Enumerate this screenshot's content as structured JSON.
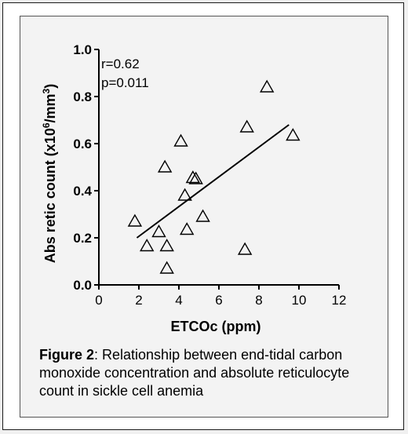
{
  "chart_data": {
    "type": "scatter",
    "xlabel": "ETCOc (ppm)",
    "ylabel": "Abs retic count (x10",
    "ylabel_sup": "6",
    "ylabel_unit": "/mm",
    "ylabel_sup2": "3",
    "ylabel_close": ")",
    "xlim": [
      0,
      12
    ],
    "ylim": [
      0,
      1.0
    ],
    "x_ticks": [
      "0",
      "2",
      "4",
      "6",
      "8",
      "10",
      "12"
    ],
    "y_ticks": [
      "0.0",
      "0.2",
      "0.4",
      "0.6",
      "0.8",
      "1.0"
    ],
    "x_tick_values": [
      0,
      2,
      4,
      6,
      8,
      10,
      12
    ],
    "y_tick_values": [
      0.0,
      0.2,
      0.4,
      0.6,
      0.8,
      1.0
    ],
    "grid": false,
    "marker": "open-triangle",
    "points": [
      {
        "x": 1.8,
        "y": 0.27
      },
      {
        "x": 2.4,
        "y": 0.165
      },
      {
        "x": 3.0,
        "y": 0.225
      },
      {
        "x": 3.3,
        "y": 0.5
      },
      {
        "x": 3.4,
        "y": 0.165
      },
      {
        "x": 3.4,
        "y": 0.07
      },
      {
        "x": 4.1,
        "y": 0.61
      },
      {
        "x": 4.3,
        "y": 0.38
      },
      {
        "x": 4.4,
        "y": 0.235
      },
      {
        "x": 4.7,
        "y": 0.455
      },
      {
        "x": 4.85,
        "y": 0.45
      },
      {
        "x": 5.2,
        "y": 0.29
      },
      {
        "x": 7.3,
        "y": 0.15
      },
      {
        "x": 7.4,
        "y": 0.67
      },
      {
        "x": 8.4,
        "y": 0.84
      },
      {
        "x": 9.7,
        "y": 0.635
      }
    ],
    "regression_line": {
      "x": [
        1.9,
        9.5
      ],
      "y": [
        0.2,
        0.68
      ]
    },
    "annotations": [
      "r=0.62",
      "p=0.011"
    ]
  },
  "caption": {
    "figure_label": "Figure 2",
    "text": ": Relationship between end-tidal carbon monoxide concentration and absolute reticulocyte count in sickle cell anemia"
  }
}
